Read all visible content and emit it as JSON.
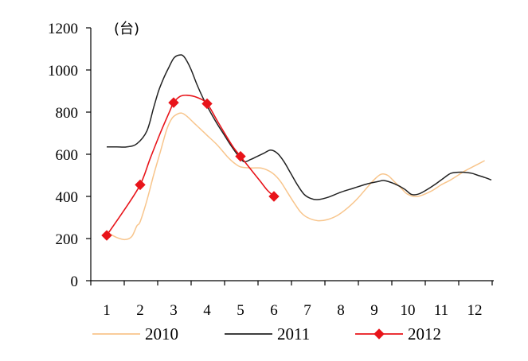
{
  "chart_data": {
    "type": "line",
    "unit_label": "(台)",
    "categories": [
      "1",
      "2",
      "3",
      "4",
      "5",
      "6",
      "7",
      "8",
      "9",
      "10",
      "11",
      "12"
    ],
    "ylim": [
      0,
      1200
    ],
    "yticks": [
      "0",
      "200",
      "400",
      "600",
      "800",
      "1000",
      "1200"
    ],
    "grid": false,
    "legend_position": "bottom",
    "series": [
      {
        "name": "2010",
        "color": "#f8c58c",
        "marker": "none",
        "points": [
          [
            1.0,
            230
          ],
          [
            1.3,
            205
          ],
          [
            1.55,
            195
          ],
          [
            1.75,
            210
          ],
          [
            1.9,
            260
          ],
          [
            2.0,
            280
          ],
          [
            2.2,
            380
          ],
          [
            2.4,
            500
          ],
          [
            2.6,
            610
          ],
          [
            2.8,
            720
          ],
          [
            2.95,
            770
          ],
          [
            3.1,
            790
          ],
          [
            3.25,
            795
          ],
          [
            3.4,
            780
          ],
          [
            3.6,
            750
          ],
          [
            3.8,
            720
          ],
          [
            4.0,
            690
          ],
          [
            4.3,
            645
          ],
          [
            4.6,
            590
          ],
          [
            4.8,
            560
          ],
          [
            5.0,
            540
          ],
          [
            5.3,
            535
          ],
          [
            5.6,
            535
          ],
          [
            5.8,
            525
          ],
          [
            6.0,
            505
          ],
          [
            6.2,
            470
          ],
          [
            6.4,
            420
          ],
          [
            6.6,
            370
          ],
          [
            6.8,
            325
          ],
          [
            7.0,
            300
          ],
          [
            7.3,
            285
          ],
          [
            7.6,
            290
          ],
          [
            7.9,
            310
          ],
          [
            8.2,
            345
          ],
          [
            8.5,
            390
          ],
          [
            8.8,
            445
          ],
          [
            9.0,
            480
          ],
          [
            9.2,
            505
          ],
          [
            9.4,
            500
          ],
          [
            9.6,
            470
          ],
          [
            9.8,
            440
          ],
          [
            10.0,
            410
          ],
          [
            10.3,
            400
          ],
          [
            10.7,
            425
          ],
          [
            11.0,
            455
          ],
          [
            11.3,
            480
          ],
          [
            11.7,
            520
          ],
          [
            12.0,
            545
          ],
          [
            12.3,
            570
          ]
        ]
      },
      {
        "name": "2011",
        "color": "#222222",
        "marker": "none",
        "points": [
          [
            1.0,
            635
          ],
          [
            1.3,
            635
          ],
          [
            1.6,
            635
          ],
          [
            1.9,
            650
          ],
          [
            2.2,
            710
          ],
          [
            2.4,
            820
          ],
          [
            2.55,
            900
          ],
          [
            2.7,
            960
          ],
          [
            2.85,
            1010
          ],
          [
            3.0,
            1055
          ],
          [
            3.15,
            1070
          ],
          [
            3.3,
            1065
          ],
          [
            3.5,
            1010
          ],
          [
            3.7,
            930
          ],
          [
            3.9,
            860
          ],
          [
            4.1,
            800
          ],
          [
            4.3,
            745
          ],
          [
            4.5,
            695
          ],
          [
            4.7,
            645
          ],
          [
            4.9,
            600
          ],
          [
            5.1,
            565
          ],
          [
            5.3,
            575
          ],
          [
            5.5,
            590
          ],
          [
            5.7,
            605
          ],
          [
            5.9,
            620
          ],
          [
            6.1,
            605
          ],
          [
            6.3,
            565
          ],
          [
            6.5,
            510
          ],
          [
            6.7,
            455
          ],
          [
            6.9,
            410
          ],
          [
            7.1,
            390
          ],
          [
            7.3,
            385
          ],
          [
            7.6,
            395
          ],
          [
            8.0,
            420
          ],
          [
            8.4,
            440
          ],
          [
            8.8,
            460
          ],
          [
            9.1,
            470
          ],
          [
            9.3,
            475
          ],
          [
            9.6,
            460
          ],
          [
            9.9,
            435
          ],
          [
            10.1,
            410
          ],
          [
            10.3,
            410
          ],
          [
            10.5,
            425
          ],
          [
            10.8,
            455
          ],
          [
            11.1,
            490
          ],
          [
            11.3,
            510
          ],
          [
            11.6,
            515
          ],
          [
            11.9,
            510
          ],
          [
            12.1,
            500
          ],
          [
            12.3,
            490
          ],
          [
            12.5,
            478
          ]
        ]
      },
      {
        "name": "2012",
        "color": "#e8141a",
        "marker": "diamond",
        "marker_points": [
          [
            1,
            215
          ],
          [
            2,
            455
          ],
          [
            3,
            845
          ],
          [
            4,
            840
          ],
          [
            5,
            590
          ],
          [
            6,
            400
          ]
        ],
        "points": [
          [
            1.0,
            215
          ],
          [
            1.5,
            330
          ],
          [
            2.0,
            455
          ],
          [
            2.3,
            580
          ],
          [
            2.6,
            700
          ],
          [
            2.9,
            810
          ],
          [
            3.0,
            845
          ],
          [
            3.2,
            875
          ],
          [
            3.4,
            880
          ],
          [
            3.7,
            870
          ],
          [
            4.0,
            840
          ],
          [
            4.3,
            760
          ],
          [
            4.6,
            680
          ],
          [
            4.8,
            630
          ],
          [
            5.0,
            590
          ],
          [
            5.3,
            530
          ],
          [
            5.6,
            470
          ],
          [
            5.8,
            430
          ],
          [
            6.0,
            400
          ]
        ]
      }
    ]
  }
}
